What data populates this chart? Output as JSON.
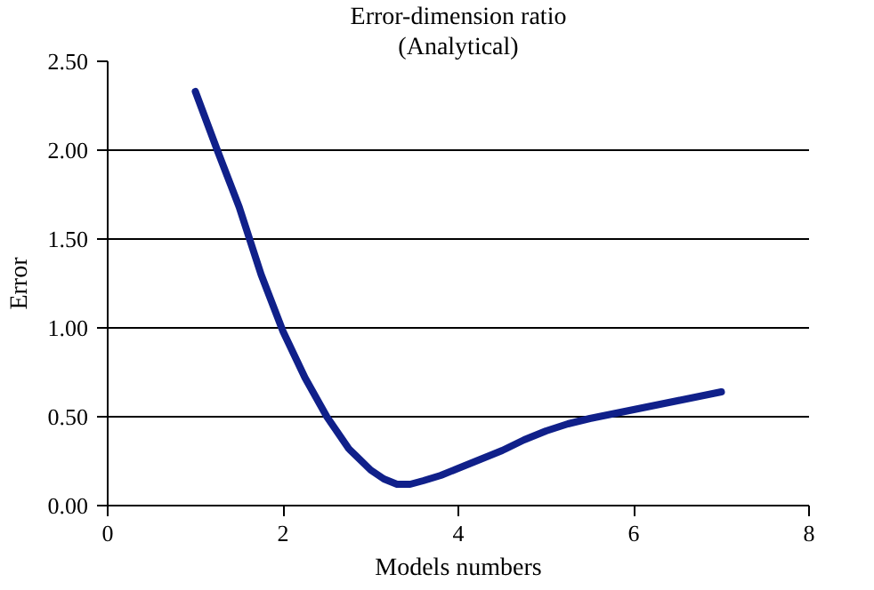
{
  "chart_data": {
    "type": "line",
    "title": "Error-dimension ratio",
    "subtitle": "(Analytical)",
    "xlabel": "Models numbers",
    "ylabel": "Error",
    "x": [
      1,
      1.25,
      1.5,
      1.75,
      2,
      2.25,
      2.5,
      2.75,
      3,
      3.15,
      3.3,
      3.45,
      3.6,
      3.8,
      4,
      4.25,
      4.5,
      4.75,
      5,
      5.25,
      5.5,
      6,
      6.5,
      7
    ],
    "series": [
      {
        "color": "#10208a",
        "values": [
          2.33,
          2.0,
          1.68,
          1.3,
          0.98,
          0.72,
          0.5,
          0.32,
          0.2,
          0.15,
          0.12,
          0.12,
          0.14,
          0.17,
          0.21,
          0.26,
          0.31,
          0.37,
          0.42,
          0.46,
          0.49,
          0.54,
          0.59,
          0.64
        ]
      }
    ],
    "xlim": [
      0,
      8
    ],
    "xticks": [
      0,
      2,
      4,
      6,
      8
    ],
    "ylim": [
      0,
      2.5
    ],
    "yticks": [
      {
        "value": 0,
        "label": "0.00"
      },
      {
        "value": 0.5,
        "label": "0.50"
      },
      {
        "value": 1,
        "label": "1.00"
      },
      {
        "value": 1.5,
        "label": "1.50"
      },
      {
        "value": 2,
        "label": "2.00"
      },
      {
        "value": 2.5,
        "label": "2.50"
      }
    ],
    "grid": "y",
    "marker": "none",
    "line_style": "solid"
  }
}
